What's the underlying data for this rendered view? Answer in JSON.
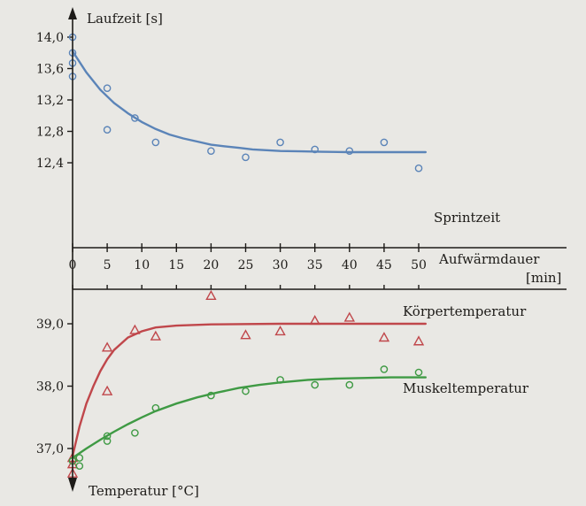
{
  "chart_data": [
    {
      "type": "scatter",
      "ylabel": "Laufzeit [s]",
      "xlabel": "Aufwärmdauer [min]",
      "xlim": [
        0,
        50
      ],
      "ylim": [
        12.2,
        14.1
      ],
      "x_ticks": [
        "0",
        "5",
        "10",
        "15",
        "20",
        "25",
        "30",
        "35",
        "40",
        "45",
        "50"
      ],
      "y_ticks": [
        "14,0",
        "13,6",
        "13,2",
        "12,8",
        "12,4"
      ],
      "grid": false,
      "series": [
        {
          "name": "Sprintzeit",
          "color": "#5b84b8",
          "marker": "circle",
          "points": [
            [
              0,
              14.0
            ],
            [
              0,
              13.8
            ],
            [
              0,
              13.67
            ],
            [
              0,
              13.5
            ],
            [
              5,
              13.35
            ],
            [
              5,
              12.82
            ],
            [
              9,
              12.97
            ],
            [
              12,
              12.66
            ],
            [
              20,
              12.55
            ],
            [
              25,
              12.47
            ],
            [
              30,
              12.66
            ],
            [
              35,
              12.57
            ],
            [
              40,
              12.55
            ],
            [
              45,
              12.66
            ],
            [
              50,
              12.33
            ]
          ],
          "fit": [
            [
              0,
              13.82
            ],
            [
              2,
              13.55
            ],
            [
              4,
              13.33
            ],
            [
              6,
              13.16
            ],
            [
              8,
              13.03
            ],
            [
              10,
              12.92
            ],
            [
              12,
              12.83
            ],
            [
              14,
              12.76
            ],
            [
              16,
              12.71
            ],
            [
              18,
              12.67
            ],
            [
              20,
              12.63
            ],
            [
              22,
              12.61
            ],
            [
              24,
              12.59
            ],
            [
              26,
              12.57
            ],
            [
              28,
              12.56
            ],
            [
              30,
              12.55
            ],
            [
              33,
              12.545
            ],
            [
              36,
              12.54
            ],
            [
              40,
              12.535
            ],
            [
              45,
              12.535
            ],
            [
              51,
              12.535
            ]
          ]
        }
      ]
    },
    {
      "type": "scatter",
      "ylabel": "Temperatur [°C]",
      "xlim": [
        0,
        50
      ],
      "ylim": [
        36.5,
        39.6
      ],
      "y_ticks": [
        "39,0",
        "38,0",
        "37,0"
      ],
      "grid": false,
      "series": [
        {
          "name": "Körpertemperatur",
          "color": "#c0474b",
          "marker": "triangle",
          "points": [
            [
              0,
              36.85
            ],
            [
              0,
              36.75
            ],
            [
              0,
              36.6
            ],
            [
              5,
              38.62
            ],
            [
              5,
              37.92
            ],
            [
              9,
              38.9
            ],
            [
              12,
              38.8
            ],
            [
              20,
              39.45
            ],
            [
              25,
              38.82
            ],
            [
              30,
              38.88
            ],
            [
              35,
              39.05
            ],
            [
              40,
              39.1
            ],
            [
              45,
              38.78
            ],
            [
              50,
              38.72
            ]
          ],
          "fit": [
            [
              0,
              36.88
            ],
            [
              1,
              37.35
            ],
            [
              2,
              37.72
            ],
            [
              3,
              38.0
            ],
            [
              4,
              38.24
            ],
            [
              5,
              38.43
            ],
            [
              6,
              38.58
            ],
            [
              8,
              38.78
            ],
            [
              10,
              38.88
            ],
            [
              12,
              38.94
            ],
            [
              15,
              38.97
            ],
            [
              20,
              38.99
            ],
            [
              30,
              39.0
            ],
            [
              51,
              39.0
            ]
          ]
        },
        {
          "name": "Muskeltemperatur",
          "color": "#3f9a44",
          "marker": "circle",
          "points": [
            [
              0,
              36.8
            ],
            [
              1,
              36.85
            ],
            [
              1,
              36.72
            ],
            [
              5,
              37.2
            ],
            [
              5,
              37.12
            ],
            [
              9,
              37.25
            ],
            [
              12,
              37.65
            ],
            [
              20,
              37.85
            ],
            [
              25,
              37.92
            ],
            [
              30,
              38.1
            ],
            [
              35,
              38.02
            ],
            [
              40,
              38.02
            ],
            [
              45,
              38.27
            ],
            [
              50,
              38.22
            ]
          ],
          "fit": [
            [
              0,
              36.85
            ],
            [
              2,
              37.0
            ],
            [
              4,
              37.14
            ],
            [
              6,
              37.27
            ],
            [
              8,
              37.39
            ],
            [
              10,
              37.5
            ],
            [
              12,
              37.6
            ],
            [
              15,
              37.72
            ],
            [
              18,
              37.82
            ],
            [
              21,
              37.9
            ],
            [
              24,
              37.97
            ],
            [
              27,
              38.02
            ],
            [
              30,
              38.06
            ],
            [
              34,
              38.1
            ],
            [
              38,
              38.12
            ],
            [
              42,
              38.13
            ],
            [
              46,
              38.14
            ],
            [
              51,
              38.14
            ]
          ]
        }
      ]
    }
  ]
}
